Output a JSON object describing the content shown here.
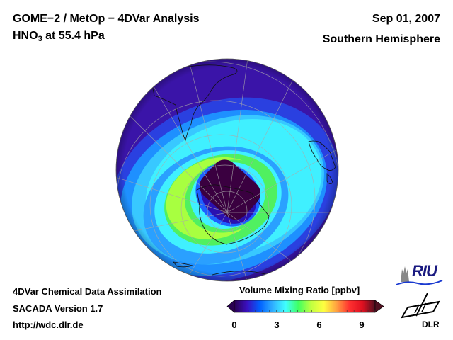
{
  "header": {
    "title_line1": "GOME−2 / MetOp − 4DVar Analysis",
    "species_main": "HNO",
    "species_sub": "3",
    "species_rest": " at 55.4 hPa",
    "date": "Sep 01, 2007",
    "region": "Southern Hemisphere"
  },
  "footer": {
    "line1": "4DVar Chemical Data Assimilation",
    "line2": "SACADA Version 1.7",
    "line3": "http://wdc.dlr.de"
  },
  "colorbar": {
    "title": "Volume Mixing Ratio [ppbv]",
    "range": [
      0,
      10
    ],
    "ticks": [
      "0",
      "3",
      "6",
      "9"
    ],
    "tick_values": [
      0,
      3,
      6,
      9
    ],
    "colors": [
      "#2a0050",
      "#3a10c0",
      "#0060ff",
      "#30b0ff",
      "#40ffff",
      "#40ff60",
      "#c0ff40",
      "#ffff40",
      "#ffa040",
      "#ff3030",
      "#e01020",
      "#501020"
    ]
  },
  "map": {
    "projection": "orthographic-south-pole",
    "colors": {
      "background_low": "#3a14a8",
      "low": "#2a40e0",
      "mid_blue": "#1e90ff",
      "cyan": "#40f0ff",
      "green": "#50f050",
      "lime": "#a8ff40",
      "vortex": "#3a0040"
    }
  },
  "logos": {
    "riu": "RIU",
    "dlr": "DLR"
  }
}
